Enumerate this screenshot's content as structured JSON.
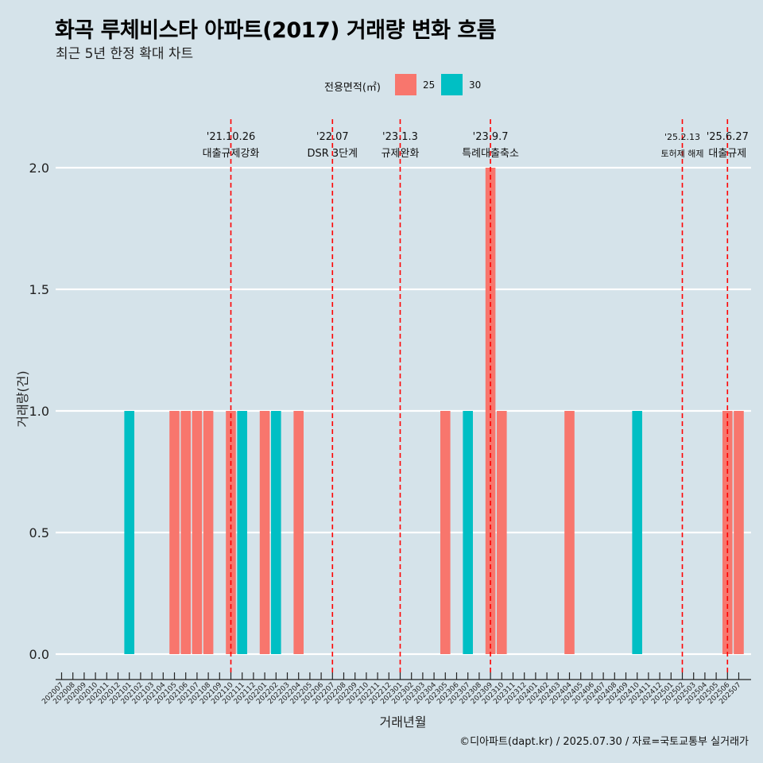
{
  "title": "화곡 루체비스타 아파트(2017) 거래량 변화 흐름",
  "subtitle": "최근 5년 한정 확대 차트",
  "legend": {
    "title": "전용면적(㎡)",
    "items": [
      {
        "label": "25",
        "color": "#f8766d"
      },
      {
        "label": "30",
        "color": "#00bfc4"
      }
    ]
  },
  "caption": "©디아파트(dapt.kr) / 2025.07.30 / 자료=국토교통부 실거래가",
  "colors": {
    "background": "#d5e3ea",
    "grid": "#ffffff",
    "event_line": "#ff0000"
  },
  "chart_data": {
    "type": "bar",
    "xlabel": "거래년월",
    "ylabel": "거래량(건)",
    "ylim": [
      0,
      2.0
    ],
    "yticks": [
      "0.0",
      "0.5",
      "1.0",
      "1.5",
      "2.0"
    ],
    "categories": [
      "202007",
      "202008",
      "202009",
      "202010",
      "202011",
      "202012",
      "202101",
      "202102",
      "202103",
      "202104",
      "202105",
      "202106",
      "202107",
      "202108",
      "202109",
      "202110",
      "202111",
      "202112",
      "202201",
      "202202",
      "202203",
      "202204",
      "202205",
      "202206",
      "202207",
      "202208",
      "202209",
      "202210",
      "202211",
      "202212",
      "202301",
      "202302",
      "202303",
      "202304",
      "202305",
      "202306",
      "202307",
      "202308",
      "202309",
      "202310",
      "202311",
      "202312",
      "202401",
      "202402",
      "202403",
      "202404",
      "202405",
      "202406",
      "202407",
      "202408",
      "202409",
      "202410",
      "202411",
      "202412",
      "202501",
      "202502",
      "202503",
      "202504",
      "202505",
      "202506",
      "202507"
    ],
    "series": [
      {
        "name": "25",
        "color": "#f8766d",
        "values": {
          "202105": 1,
          "202106": 1,
          "202107": 1,
          "202108": 1,
          "202110": 1,
          "202201": 1,
          "202204": 1,
          "202305": 1,
          "202309": 2,
          "202310": 1,
          "202404": 1,
          "202506": 1,
          "202507": 1
        }
      },
      {
        "name": "30",
        "color": "#00bfc4",
        "values": {
          "202101": 1,
          "202111": 1,
          "202202": 1,
          "202307": 1,
          "202410": 1
        }
      }
    ],
    "events": [
      {
        "date": "'21.10.26",
        "label": "대출규제강화",
        "month": "202110"
      },
      {
        "date": "'22.07",
        "label": "DSR 3단계",
        "month": "202207"
      },
      {
        "date": "'23.1.3",
        "label": "규제완화",
        "month": "202301"
      },
      {
        "date": "'23.9.7",
        "label": "특례대출축소",
        "month": "202309"
      },
      {
        "date": "'25.2.13",
        "label": "토허제 해제",
        "month": "202502"
      },
      {
        "date": "'25.6.27",
        "label": "대출규제",
        "month": "202506"
      }
    ]
  }
}
